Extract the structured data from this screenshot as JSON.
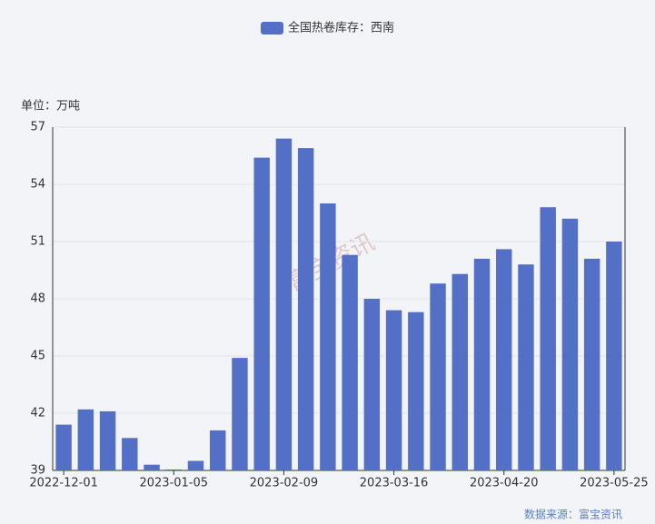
{
  "chart_data": {
    "type": "bar",
    "legend_label": "全国热卷库存：西南",
    "unit_label": "单位：万吨",
    "source": "数据来源：富宝资讯",
    "watermark": "富宝资讯",
    "categories": [
      "2022-12-01",
      null,
      null,
      null,
      null,
      "2023-01-05",
      null,
      null,
      null,
      null,
      "2023-02-09",
      null,
      null,
      null,
      null,
      "2023-03-16",
      null,
      null,
      null,
      null,
      "2023-04-20",
      null,
      null,
      null,
      null,
      "2023-05-25"
    ],
    "values": [
      41.4,
      42.2,
      42.1,
      40.7,
      39.3,
      39.05,
      39.5,
      41.1,
      44.9,
      55.4,
      56.4,
      55.9,
      53.0,
      50.3,
      48.0,
      47.4,
      47.3,
      48.8,
      49.3,
      50.1,
      50.6,
      49.8,
      52.8,
      52.2,
      50.1,
      51.0
    ],
    "color": "#5470c6",
    "ylim": [
      39,
      57
    ],
    "yticks": [
      39,
      42,
      45,
      48,
      51,
      54,
      57
    ],
    "grid": true
  }
}
